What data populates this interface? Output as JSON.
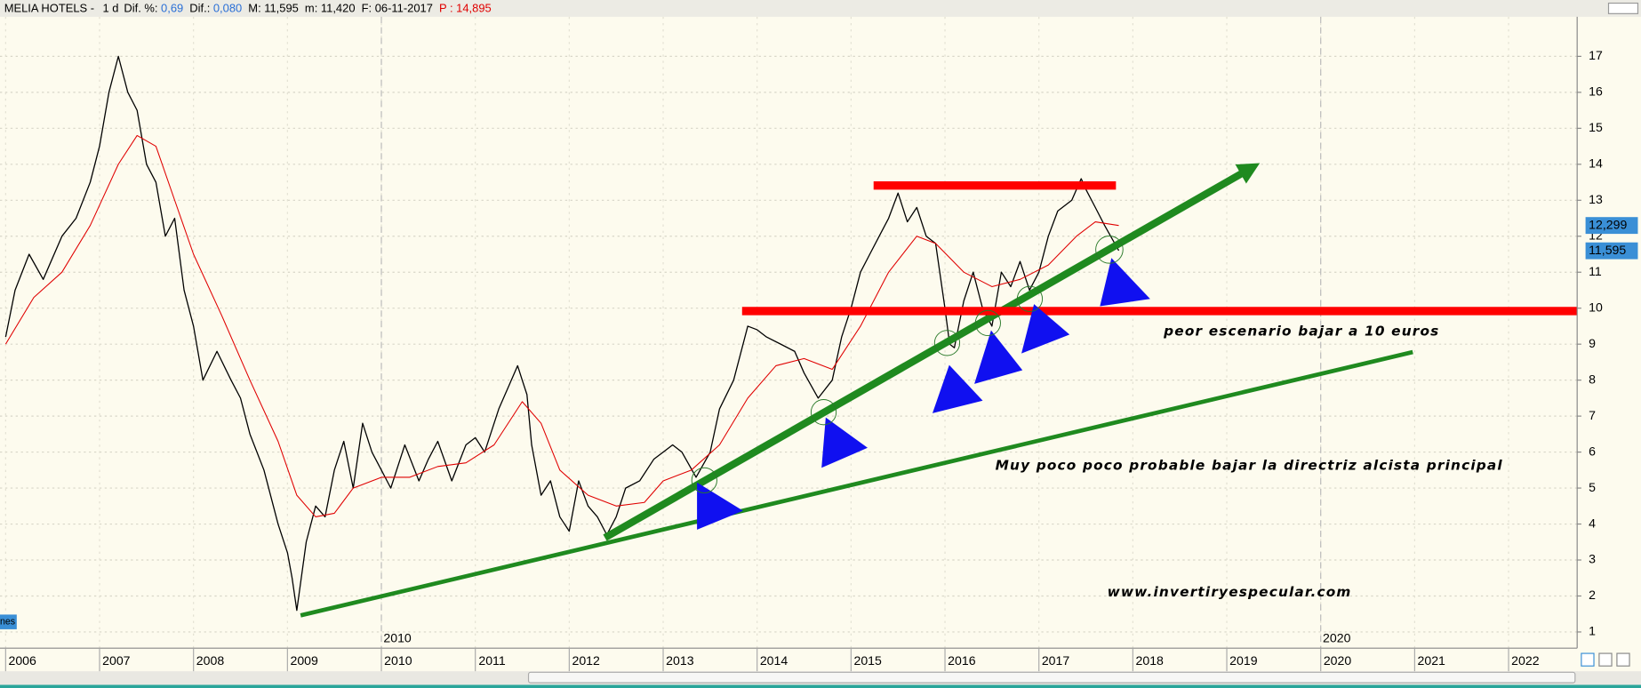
{
  "header": {
    "symbol": "MELIA HOTELS -",
    "period": "1 d",
    "dif_pct_label": "Dif. %:",
    "dif_pct": "0,69",
    "dif_label": "Dif.:",
    "dif": "0,080",
    "max": "M: 11,595",
    "min": "m: 11,420",
    "date": "F: 06-11-2017",
    "price": "P : 14,895"
  },
  "chart_data": {
    "type": "line",
    "xlim": [
      2005.94,
      2022.73
    ],
    "ylim": [
      0.55,
      18.1
    ],
    "xticks": [
      2006,
      2007,
      2008,
      2009,
      2010,
      2011,
      2012,
      2013,
      2014,
      2015,
      2016,
      2017,
      2018,
      2019,
      2020,
      2021,
      2022
    ],
    "decade_ticks": [
      2010,
      2020
    ],
    "yticks": [
      1,
      2,
      3,
      4,
      5,
      6,
      7,
      8,
      9,
      10,
      11,
      12,
      13,
      14,
      15,
      16,
      17
    ],
    "grid": true,
    "series": [
      {
        "color": "#000000",
        "x": [
          2006.0,
          2006.1,
          2006.25,
          2006.4,
          2006.6,
          2006.75,
          2006.9,
          2007.0,
          2007.1,
          2007.2,
          2007.3,
          2007.4,
          2007.5,
          2007.6,
          2007.7,
          2007.8,
          2007.9,
          2008.0,
          2008.1,
          2008.25,
          2008.4,
          2008.5,
          2008.6,
          2008.75,
          2008.9,
          2009.0,
          2009.05,
          2009.1,
          2009.2,
          2009.3,
          2009.4,
          2009.5,
          2009.6,
          2009.7,
          2009.8,
          2009.9,
          2010.0,
          2010.1,
          2010.25,
          2010.4,
          2010.5,
          2010.6,
          2010.75,
          2010.9,
          2011.0,
          2011.1,
          2011.25,
          2011.35,
          2011.45,
          2011.5,
          2011.55,
          2011.6,
          2011.7,
          2011.8,
          2011.9,
          2012.0,
          2012.1,
          2012.2,
          2012.3,
          2012.4,
          2012.5,
          2012.6,
          2012.75,
          2012.9,
          2013.0,
          2013.1,
          2013.2,
          2013.35,
          2013.5,
          2013.6,
          2013.75,
          2013.9,
          2014.0,
          2014.1,
          2014.25,
          2014.4,
          2014.5,
          2014.65,
          2014.8,
          2014.9,
          2015.0,
          2015.1,
          2015.2,
          2015.3,
          2015.4,
          2015.5,
          2015.6,
          2015.7,
          2015.8,
          2015.9,
          2016.0,
          2016.05,
          2016.1,
          2016.2,
          2016.3,
          2016.4,
          2016.5,
          2016.6,
          2016.7,
          2016.8,
          2016.9,
          2017.0,
          2017.1,
          2017.2,
          2017.35,
          2017.45,
          2017.5,
          2017.6,
          2017.7,
          2017.85
        ],
        "values": [
          9.2,
          10.5,
          11.5,
          10.8,
          12.0,
          12.5,
          13.5,
          14.5,
          16.0,
          17.0,
          16.0,
          15.5,
          14.0,
          13.5,
          12.0,
          12.5,
          10.5,
          9.5,
          8.0,
          8.8,
          8.0,
          7.5,
          6.5,
          5.5,
          4.0,
          3.2,
          2.5,
          1.6,
          3.5,
          4.5,
          4.2,
          5.5,
          6.3,
          5.0,
          6.8,
          6.0,
          5.5,
          5.0,
          6.2,
          5.2,
          5.8,
          6.3,
          5.2,
          6.2,
          6.4,
          6.0,
          7.2,
          7.8,
          8.4,
          8.0,
          7.6,
          6.2,
          4.8,
          5.2,
          4.2,
          3.8,
          5.2,
          4.5,
          4.2,
          3.7,
          4.2,
          5.0,
          5.2,
          5.8,
          6.0,
          6.2,
          6.0,
          5.3,
          6.0,
          7.2,
          8.0,
          9.5,
          9.4,
          9.2,
          9.0,
          8.8,
          8.2,
          7.5,
          8.0,
          9.2,
          10.0,
          11.0,
          11.5,
          12.0,
          12.5,
          13.2,
          12.4,
          12.8,
          12.0,
          11.8,
          10.0,
          9.0,
          8.9,
          10.2,
          11.0,
          10.0,
          9.5,
          11.0,
          10.6,
          11.3,
          10.5,
          11.0,
          12.0,
          12.7,
          13.0,
          13.6,
          13.3,
          12.8,
          12.3,
          11.6
        ]
      },
      {
        "color": "#e00000",
        "x": [
          2006.0,
          2006.3,
          2006.6,
          2006.9,
          2007.2,
          2007.4,
          2007.6,
          2007.8,
          2008.0,
          2008.3,
          2008.6,
          2008.9,
          2009.1,
          2009.3,
          2009.5,
          2009.7,
          2010.0,
          2010.3,
          2010.6,
          2010.9,
          2011.2,
          2011.5,
          2011.7,
          2011.9,
          2012.2,
          2012.5,
          2012.8,
          2013.0,
          2013.3,
          2013.6,
          2013.9,
          2014.2,
          2014.5,
          2014.8,
          2015.1,
          2015.4,
          2015.7,
          2015.9,
          2016.2,
          2016.5,
          2016.8,
          2017.1,
          2017.4,
          2017.6,
          2017.85
        ],
        "values": [
          9.0,
          10.3,
          11.0,
          12.3,
          14.0,
          14.8,
          14.5,
          13.0,
          11.5,
          9.8,
          8.0,
          6.3,
          4.8,
          4.2,
          4.3,
          5.0,
          5.3,
          5.3,
          5.6,
          5.7,
          6.2,
          7.4,
          6.8,
          5.5,
          4.8,
          4.5,
          4.6,
          5.2,
          5.5,
          6.2,
          7.5,
          8.4,
          8.6,
          8.3,
          9.5,
          11.0,
          12.0,
          11.8,
          11.0,
          10.6,
          10.8,
          11.2,
          12.0,
          12.4,
          12.3
        ]
      }
    ],
    "trend_lines": [
      {
        "color": "#1f8a1f",
        "style": "thin",
        "x": [
          2009.14,
          2020.98
        ],
        "y": [
          1.46,
          8.78
        ]
      },
      {
        "color": "#1f8a1f",
        "style": "arrow",
        "x": [
          2012.38,
          2019.25
        ],
        "y": [
          3.62,
          13.88
        ]
      },
      {
        "color": "#ff0000",
        "style": "band",
        "x": [
          2015.24,
          2017.82
        ],
        "y": [
          13.41,
          13.41
        ]
      },
      {
        "color": "#ff0000",
        "style": "band",
        "x": [
          2013.84,
          2022.73
        ],
        "y": [
          9.92,
          9.92
        ]
      }
    ],
    "price_tags": [
      {
        "value": 12.299,
        "label": "12,299"
      },
      {
        "value": 11.595,
        "label": "11,595"
      }
    ],
    "annotations": [
      "peor escenario bajar a 10 euros",
      "Muy poco poco probable bajar la directriz alcista principal",
      "www.invertiryespecular.com"
    ],
    "volume_tab": "nes"
  }
}
